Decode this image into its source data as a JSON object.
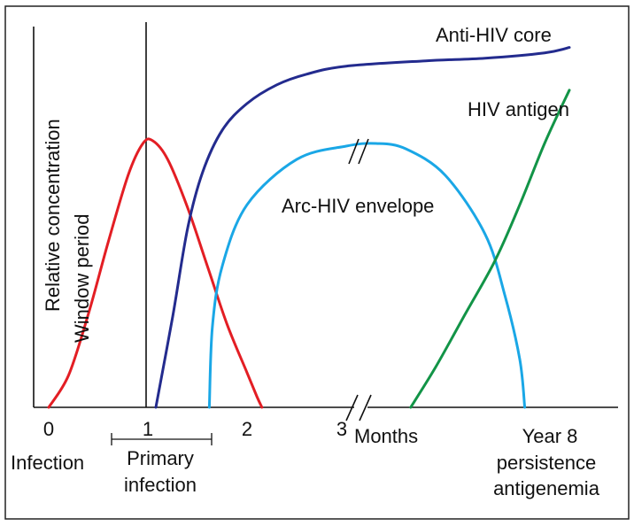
{
  "chart_data": {
    "type": "line",
    "title": "",
    "ylabel": "Relative concentration",
    "xlabel": "Months",
    "window_label": "Window period",
    "ticks": [
      {
        "x": 0,
        "label": "0"
      },
      {
        "x": 1,
        "label": "1"
      },
      {
        "x": 2,
        "label": "2"
      },
      {
        "x": 3,
        "label": "3"
      }
    ],
    "x_labels": {
      "infection": "Infection",
      "primary": "Primary",
      "primary2": "infection",
      "year": "Year 8",
      "persist1": "persistence",
      "persist2": "antigenemia"
    },
    "axis_break": true,
    "grid": false,
    "vline_x": 1,
    "series": [
      {
        "name": "",
        "color": "#e31e24",
        "points": [
          [
            0.0,
            0.0
          ],
          [
            0.2,
            0.12
          ],
          [
            0.4,
            0.35
          ],
          [
            0.6,
            0.62
          ],
          [
            0.8,
            0.87
          ],
          [
            0.95,
            0.99
          ],
          [
            1.05,
            1.0
          ],
          [
            1.2,
            0.93
          ],
          [
            1.4,
            0.75
          ],
          [
            1.6,
            0.53
          ],
          [
            1.8,
            0.31
          ],
          [
            2.0,
            0.13
          ],
          [
            2.1,
            0.04
          ],
          [
            2.15,
            0.0
          ]
        ]
      },
      {
        "name": "Anti-HIV core",
        "color": "#232b8e",
        "points": [
          [
            1.08,
            0.0
          ],
          [
            1.25,
            0.34
          ],
          [
            1.4,
            0.67
          ],
          [
            1.55,
            0.88
          ],
          [
            1.75,
            1.04
          ],
          [
            2.0,
            1.14
          ],
          [
            2.3,
            1.21
          ],
          [
            2.6,
            1.25
          ],
          [
            3.0,
            1.28
          ],
          [
            3.8,
            1.3
          ],
          [
            4.4,
            1.31
          ],
          [
            5.0,
            1.33
          ],
          [
            5.25,
            1.35
          ]
        ]
      },
      {
        "name": "Arc-HIV envelope",
        "color": "#1aa7e6",
        "points": [
          [
            1.62,
            0.0
          ],
          [
            1.65,
            0.3
          ],
          [
            1.75,
            0.53
          ],
          [
            2.0,
            0.76
          ],
          [
            2.5,
            0.93
          ],
          [
            3.0,
            0.98
          ],
          [
            3.3,
            0.99
          ],
          [
            3.6,
            0.97
          ],
          [
            4.0,
            0.87
          ],
          [
            4.4,
            0.65
          ],
          [
            4.6,
            0.42
          ],
          [
            4.75,
            0.18
          ],
          [
            4.8,
            0.0
          ]
        ]
      },
      {
        "name": "HIV antigen",
        "color": "#129447",
        "points": [
          [
            3.65,
            0.0
          ],
          [
            3.9,
            0.15
          ],
          [
            4.2,
            0.35
          ],
          [
            4.5,
            0.55
          ],
          [
            4.75,
            0.76
          ],
          [
            5.0,
            0.99
          ],
          [
            5.25,
            1.19
          ]
        ]
      }
    ]
  }
}
